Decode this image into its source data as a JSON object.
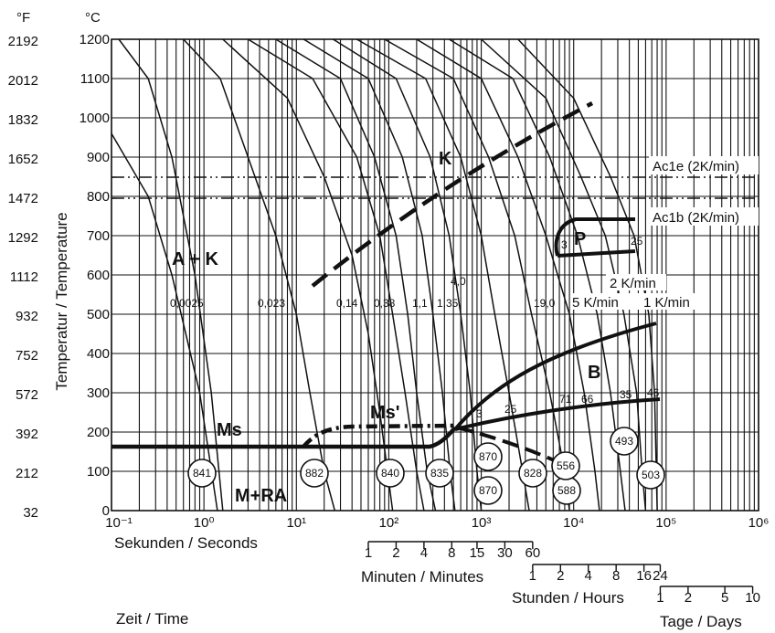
{
  "chart_data": {
    "type": "line",
    "units": {
      "fahrenheit": "°F",
      "celsius": "°C"
    },
    "y_celsius_ticks": [
      "1200",
      "1100",
      "1000",
      "900",
      "800",
      "700",
      "600",
      "500",
      "400",
      "300",
      "200",
      "100",
      "0"
    ],
    "y_fahrenheit_ticks": [
      "2192",
      "2012",
      "1832",
      "1652",
      "1472",
      "1292",
      "1112",
      "932",
      "752",
      "572",
      "392",
      "212",
      "32"
    ],
    "ylabel": "Temperatur / Temperature",
    "ylim": [
      0,
      1200
    ],
    "x_scale": "log",
    "xlim": [
      0.1,
      1000000
    ],
    "x_ticks": [
      "10⁻¹",
      "10⁰",
      "10¹",
      "10²",
      "10³",
      "10⁴",
      "10⁵",
      "10⁶"
    ],
    "xlabel": "Sekunden / Seconds",
    "minutes_label": "Minuten / Minutes",
    "minutes_ticks": [
      "1",
      "2",
      "4",
      "8",
      "15",
      "30",
      "60"
    ],
    "hours_label": "Stunden / Hours",
    "hours_ticks": [
      "1",
      "2",
      "4",
      "8",
      "16",
      "24"
    ],
    "days_label": "Tage / Days",
    "days_ticks": [
      "1",
      "2",
      "5",
      "10"
    ],
    "time_label": "Zeit / Time",
    "ac1e_label": "Ac1e (2K/min)",
    "ac1b_label": "Ac1b (2K/min)",
    "ac1e_value": 840,
    "ac1b_value": 780,
    "regions": {
      "ak": "A + K",
      "k": "K",
      "p": "P",
      "b": "B",
      "ms": "Ms",
      "ms_prime": "Ms'",
      "mra": "M+RA"
    },
    "cooling_parameters": [
      "0,0025",
      "0,023",
      "0,14",
      "0,38",
      "1,1",
      "1,35",
      "4,0",
      "19,0"
    ],
    "cooling_rates": [
      "2 K/min",
      "5 K/min",
      "1 K/min"
    ],
    "phase_percentages": [
      "3",
      "25",
      "3",
      "25",
      "71",
      "66",
      "35",
      "46"
    ],
    "hardness_values": [
      "841",
      "882",
      "840",
      "835",
      "870",
      "870",
      "828",
      "588",
      "556",
      "493",
      "503"
    ],
    "ms_temperature": 170,
    "grid": true
  }
}
